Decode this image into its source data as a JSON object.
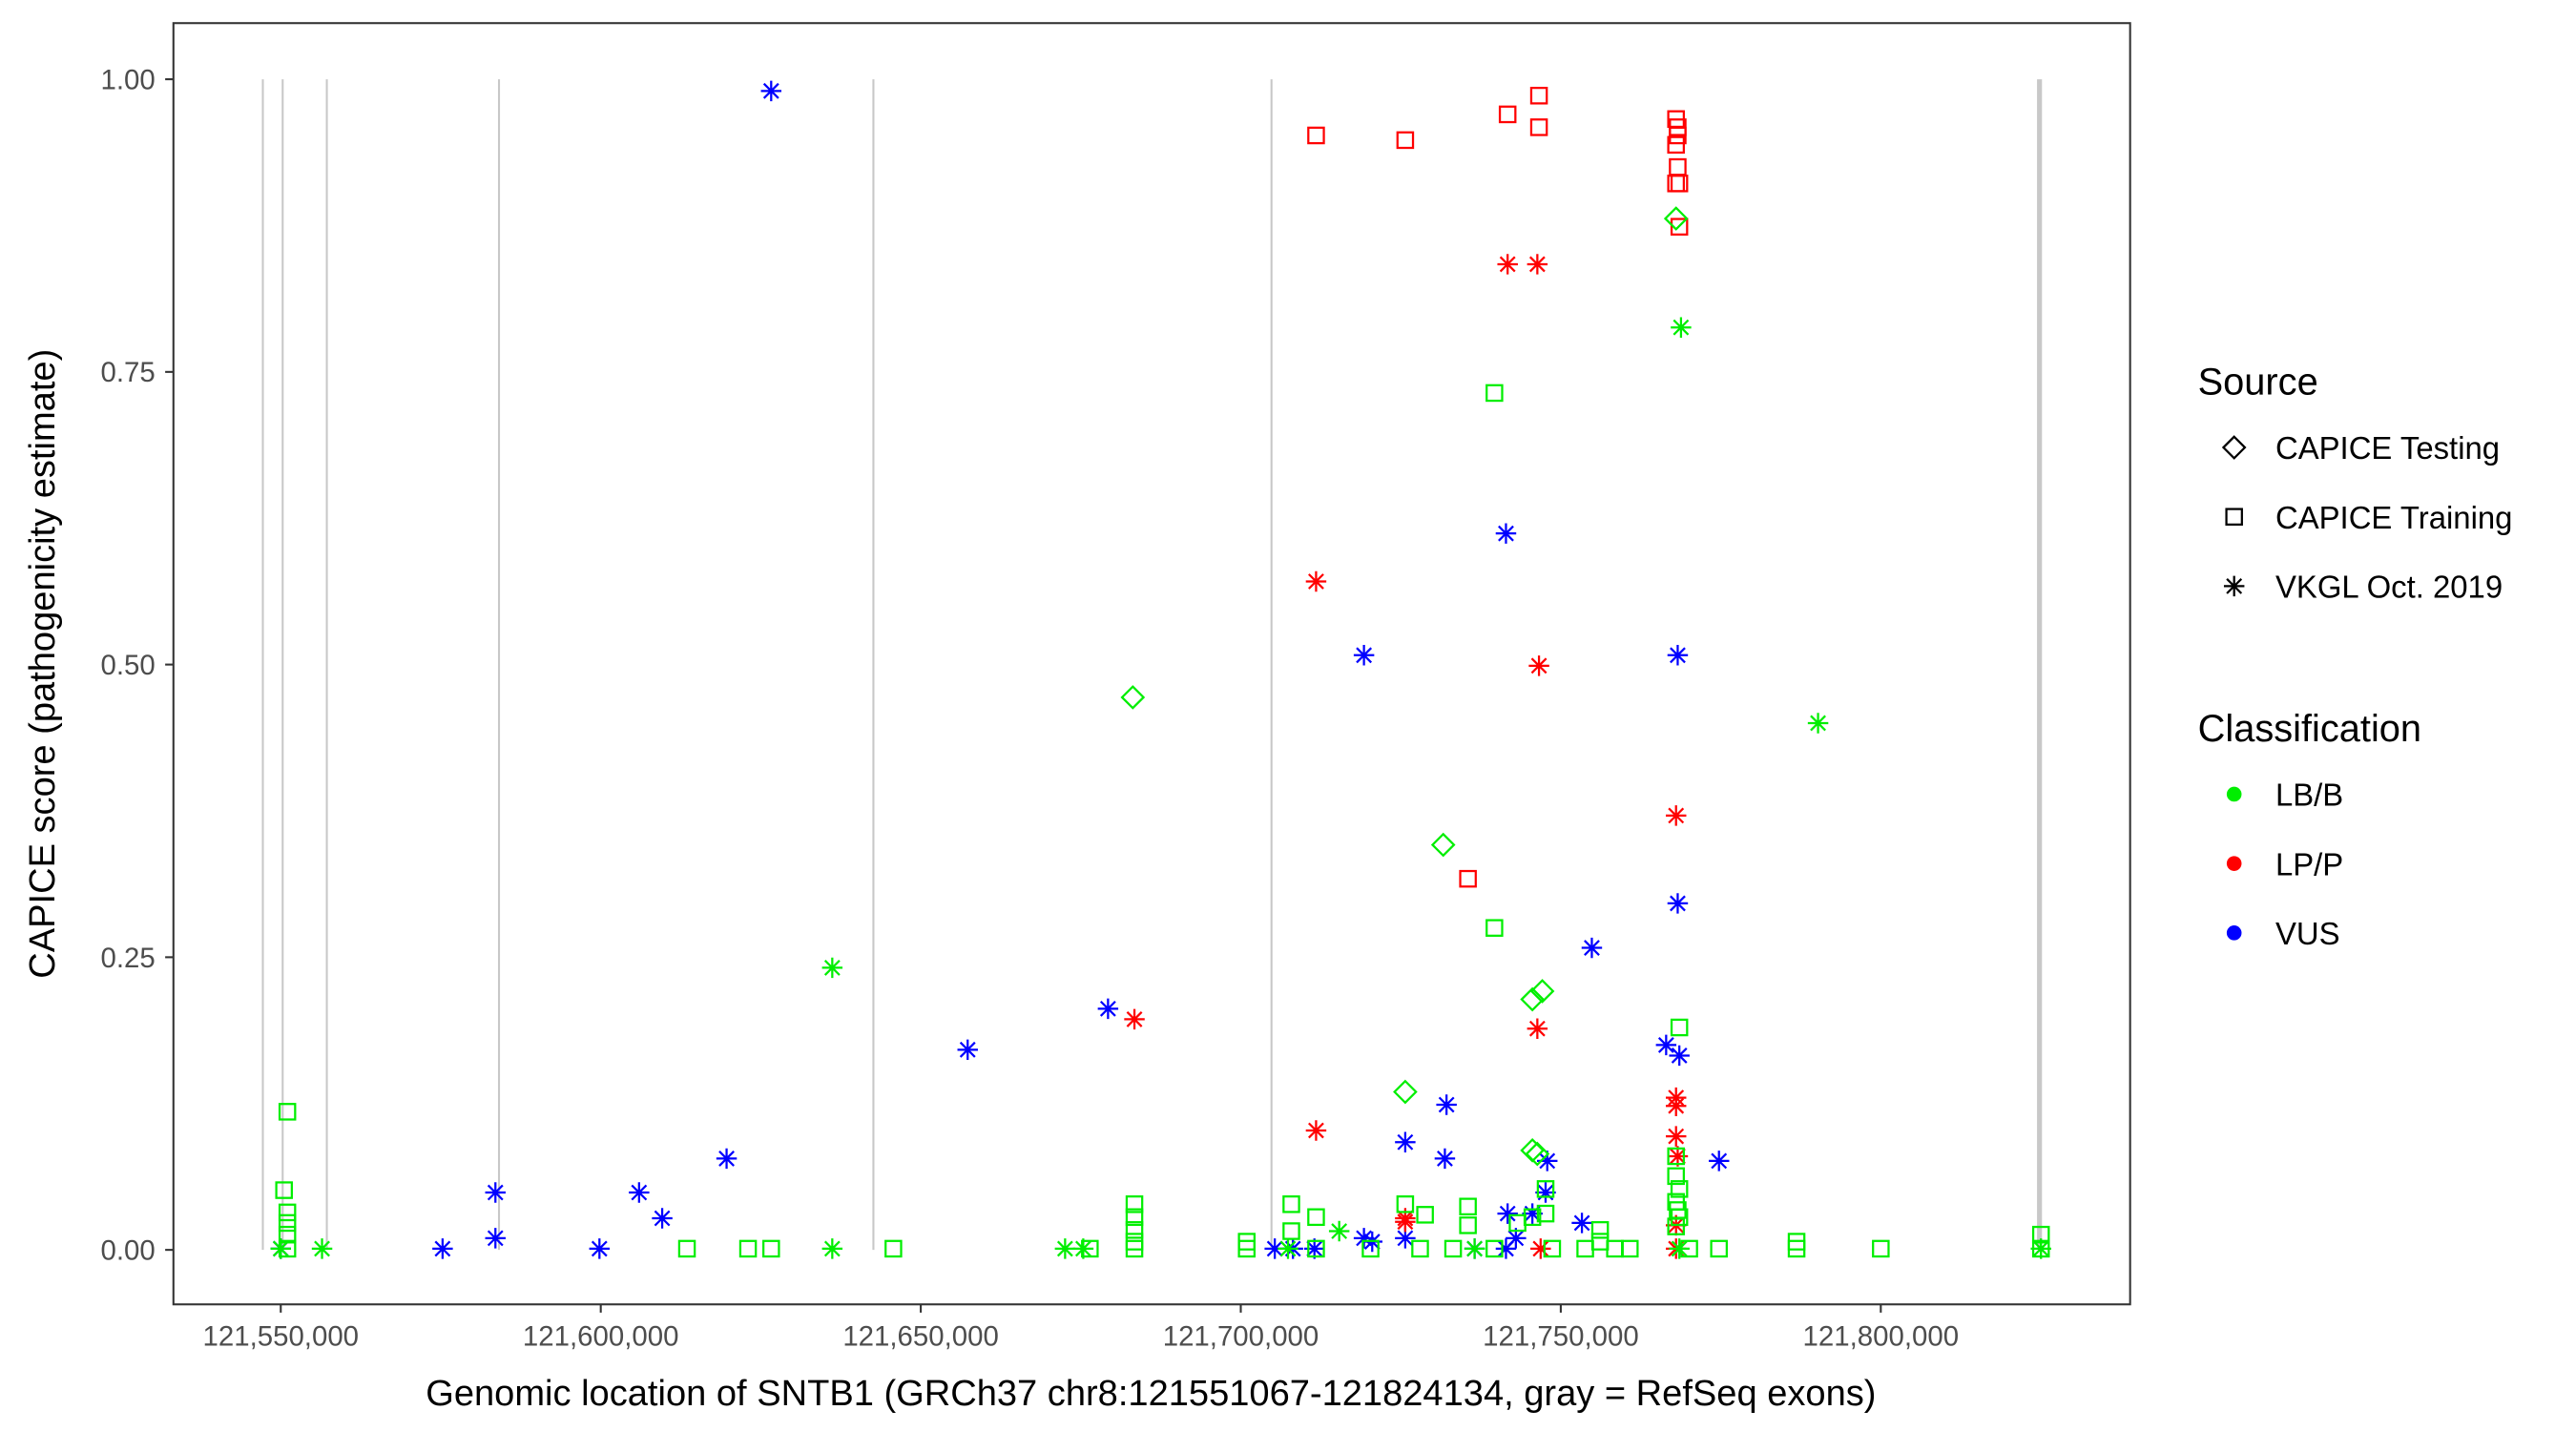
{
  "chart_data": {
    "type": "scatter",
    "xlabel": "Genomic location of SNTB1 (GRCh37 chr8:121551067-121824134, gray = RefSeq exons)",
    "ylabel": "CAPICE score (pathogenicity estimate)",
    "xlim": [
      121542000,
      121830000
    ],
    "ylim": [
      -0.045,
      1.05
    ],
    "xticks": [
      121550000,
      121600000,
      121650000,
      121700000,
      121750000,
      121800000
    ],
    "xtick_labels": [
      "121,550,000",
      "121,600,000",
      "121,650,000",
      "121,700,000",
      "121,750,000",
      "121,800,000"
    ],
    "yticks": [
      0,
      0.25,
      0.5,
      0.75,
      1
    ],
    "ytick_labels": [
      "0.00",
      "0.25",
      "0.50",
      "0.75",
      "1.00"
    ],
    "exon_positions": [
      121547200,
      121550300,
      121557200,
      121584100,
      121642600,
      121704800,
      121824800
    ],
    "grid": false,
    "legend_placement": "right",
    "legend": {
      "source_title": "Source",
      "sources": [
        "CAPICE Testing",
        "CAPICE Training",
        "VKGL Oct. 2019"
      ],
      "source_shapes": [
        "diamond",
        "square",
        "asterisk"
      ],
      "class_title": "Classification",
      "classes": [
        "LB/B",
        "LP/P",
        "VUS"
      ],
      "class_colors": [
        "#00ee00",
        "#ff0000",
        "#0000ff"
      ]
    },
    "point_format": [
      "x",
      "y",
      "source_index",
      "class_index"
    ],
    "points": [
      [
        121626626,
        0.99,
        2,
        2
      ],
      [
        121741436,
        0.612,
        2,
        2
      ],
      [
        121719248,
        0.508,
        2,
        2
      ],
      [
        121768268,
        0.508,
        2,
        2
      ],
      [
        121768268,
        0.296,
        2,
        2
      ],
      [
        121754852,
        0.258,
        2,
        2
      ],
      [
        121679258,
        0.206,
        2,
        2
      ],
      [
        121657328,
        0.171,
        2,
        2
      ],
      [
        121766462,
        0.175,
        2,
        2
      ],
      [
        121768526,
        0.166,
        2,
        2
      ],
      [
        121732148,
        0.124,
        2,
        2
      ],
      [
        121725698,
        0.092,
        2,
        2
      ],
      [
        121731890,
        0.078,
        2,
        2
      ],
      [
        121747886,
        0.076,
        2,
        2
      ],
      [
        121774718,
        0.076,
        2,
        2
      ],
      [
        121619660,
        0.078,
        2,
        2
      ],
      [
        121605986,
        0.049,
        2,
        2
      ],
      [
        121583540,
        0.049,
        2,
        2
      ],
      [
        121609598,
        0.027,
        2,
        2
      ],
      [
        121747628,
        0.049,
        2,
        2
      ],
      [
        121753304,
        0.023,
        2,
        2
      ],
      [
        121741694,
        0.031,
        2,
        2
      ],
      [
        121745564,
        0.031,
        2,
        2
      ],
      [
        121583540,
        0.01,
        2,
        2
      ],
      [
        121575284,
        0.001,
        2,
        2
      ],
      [
        121550000,
        0.001,
        2,
        2
      ],
      [
        121599794,
        0.001,
        2,
        2
      ],
      [
        121705316,
        0.001,
        2,
        2
      ],
      [
        121708154,
        0.001,
        2,
        2
      ],
      [
        121711508,
        0.001,
        2,
        2
      ],
      [
        121719248,
        0.01,
        2,
        2
      ],
      [
        121720538,
        0.007,
        2,
        2
      ],
      [
        121725698,
        0.01,
        2,
        2
      ],
      [
        121736534,
        0.001,
        2,
        2
      ],
      [
        121742984,
        0.01,
        2,
        2
      ],
      [
        121741436,
        0.001,
        2,
        2
      ],
      [
        121741694,
        0.842,
        2,
        1
      ],
      [
        121746338,
        0.842,
        2,
        1
      ],
      [
        121711766,
        0.571,
        2,
        1
      ],
      [
        121746596,
        0.499,
        2,
        1
      ],
      [
        121768010,
        0.371,
        2,
        1
      ],
      [
        121683386,
        0.197,
        2,
        1
      ],
      [
        121746338,
        0.189,
        2,
        1
      ],
      [
        121768010,
        0.13,
        2,
        1
      ],
      [
        121768010,
        0.123,
        2,
        1
      ],
      [
        121768010,
        0.097,
        2,
        1
      ],
      [
        121768268,
        0.08,
        2,
        1
      ],
      [
        121711766,
        0.102,
        2,
        1
      ],
      [
        121725698,
        0.027,
        2,
        1
      ],
      [
        121725698,
        0.024,
        2,
        1
      ],
      [
        121768010,
        0.021,
        2,
        1
      ],
      [
        121746854,
        0.001,
        2,
        1
      ],
      [
        121768010,
        0.001,
        2,
        1
      ],
      [
        121711766,
        0.952,
        1,
        1
      ],
      [
        121725698,
        0.948,
        1,
        1
      ],
      [
        121741694,
        0.97,
        1,
        1
      ],
      [
        121746596,
        0.986,
        1,
        1
      ],
      [
        121746596,
        0.959,
        1,
        1
      ],
      [
        121768010,
        0.966,
        1,
        1
      ],
      [
        121768268,
        0.959,
        1,
        1
      ],
      [
        121768268,
        0.952,
        1,
        1
      ],
      [
        121768010,
        0.944,
        1,
        1
      ],
      [
        121768268,
        0.925,
        1,
        1
      ],
      [
        121768010,
        0.911,
        1,
        1
      ],
      [
        121768526,
        0.911,
        1,
        1
      ],
      [
        121768526,
        0.874,
        1,
        1
      ],
      [
        121735502,
        0.317,
        1,
        1
      ],
      [
        121768010,
        0.881,
        0,
        0
      ],
      [
        121683128,
        0.472,
        0,
        0
      ],
      [
        121731632,
        0.346,
        0,
        0
      ],
      [
        121745564,
        0.214,
        0,
        0
      ],
      [
        121747112,
        0.221,
        0,
        0
      ],
      [
        121725698,
        0.135,
        0,
        0
      ],
      [
        121745564,
        0.085,
        0,
        0
      ],
      [
        121746338,
        0.082,
        0,
        0
      ],
      [
        121768784,
        0.788,
        2,
        0
      ],
      [
        121790198,
        0.45,
        2,
        0
      ],
      [
        121636172,
        0.241,
        2,
        0
      ],
      [
        121715378,
        0.016,
        2,
        0
      ],
      [
        121550000,
        0.001,
        2,
        0
      ],
      [
        121556450,
        0.001,
        2,
        0
      ],
      [
        121636172,
        0.001,
        2,
        0
      ],
      [
        121672550,
        0.001,
        2,
        0
      ],
      [
        121675388,
        0.001,
        2,
        0
      ],
      [
        121707380,
        0.001,
        2,
        0
      ],
      [
        121736534,
        0.001,
        2,
        0
      ],
      [
        121768526,
        0.001,
        2,
        0
      ],
      [
        121825028,
        0.001,
        2,
        0
      ],
      [
        121739630,
        0.732,
        1,
        0
      ],
      [
        121739630,
        0.275,
        1,
        0
      ],
      [
        121551032,
        0.118,
        1,
        0
      ],
      [
        121550516,
        0.051,
        1,
        0
      ],
      [
        121551032,
        0.032,
        1,
        0
      ],
      [
        121551032,
        0.023,
        1,
        0
      ],
      [
        121551032,
        0.013,
        1,
        0
      ],
      [
        121551032,
        0.001,
        1,
        0
      ],
      [
        121613468,
        0.001,
        1,
        0
      ],
      [
        121623014,
        0.001,
        1,
        0
      ],
      [
        121626626,
        0.001,
        1,
        0
      ],
      [
        121645718,
        0.001,
        1,
        0
      ],
      [
        121676420,
        0.001,
        1,
        0
      ],
      [
        121683386,
        0.039,
        1,
        0
      ],
      [
        121683386,
        0.028,
        1,
        0
      ],
      [
        121683386,
        0.017,
        1,
        0
      ],
      [
        121683386,
        0.007,
        1,
        0
      ],
      [
        121683386,
        0.001,
        1,
        0
      ],
      [
        121700930,
        0.007,
        1,
        0
      ],
      [
        121700930,
        0.001,
        1,
        0
      ],
      [
        121707896,
        0.039,
        1,
        0
      ],
      [
        121707896,
        0.016,
        1,
        0
      ],
      [
        121711766,
        0.028,
        1,
        0
      ],
      [
        121711766,
        0.001,
        1,
        0
      ],
      [
        121725698,
        0.039,
        1,
        0
      ],
      [
        121728794,
        0.03,
        1,
        0
      ],
      [
        121735502,
        0.037,
        1,
        0
      ],
      [
        121735502,
        0.021,
        1,
        0
      ],
      [
        121739630,
        0.001,
        1,
        0
      ],
      [
        121743242,
        0.023,
        1,
        0
      ],
      [
        121745564,
        0.028,
        1,
        0
      ],
      [
        121747628,
        0.031,
        1,
        0
      ],
      [
        121747628,
        0.052,
        1,
        0
      ],
      [
        121756142,
        0.017,
        1,
        0
      ],
      [
        121756142,
        0.007,
        1,
        0
      ],
      [
        121758464,
        0.001,
        1,
        0
      ],
      [
        121760786,
        0.001,
        1,
        0
      ],
      [
        121774718,
        0.001,
        1,
        0
      ],
      [
        121786844,
        0.007,
        1,
        0
      ],
      [
        121786844,
        0.001,
        1,
        0
      ],
      [
        121800002,
        0.001,
        1,
        0
      ],
      [
        121825028,
        0.013,
        1,
        0
      ],
      [
        121825028,
        0.001,
        1,
        0
      ],
      [
        121768010,
        0.08,
        1,
        0
      ],
      [
        121768010,
        0.063,
        1,
        0
      ],
      [
        121768526,
        0.052,
        1,
        0
      ],
      [
        121768010,
        0.041,
        1,
        0
      ],
      [
        121768268,
        0.034,
        1,
        0
      ],
      [
        121768526,
        0.028,
        1,
        0
      ],
      [
        121768010,
        0.02,
        1,
        0
      ],
      [
        121768526,
        0.19,
        1,
        0
      ],
      [
        121720280,
        0.001,
        1,
        0
      ],
      [
        121728020,
        0.001,
        1,
        0
      ],
      [
        121733180,
        0.001,
        1,
        0
      ],
      [
        121748660,
        0.001,
        1,
        0
      ],
      [
        121753820,
        0.001,
        1,
        0
      ],
      [
        121770074,
        0.001,
        1,
        0
      ]
    ]
  }
}
